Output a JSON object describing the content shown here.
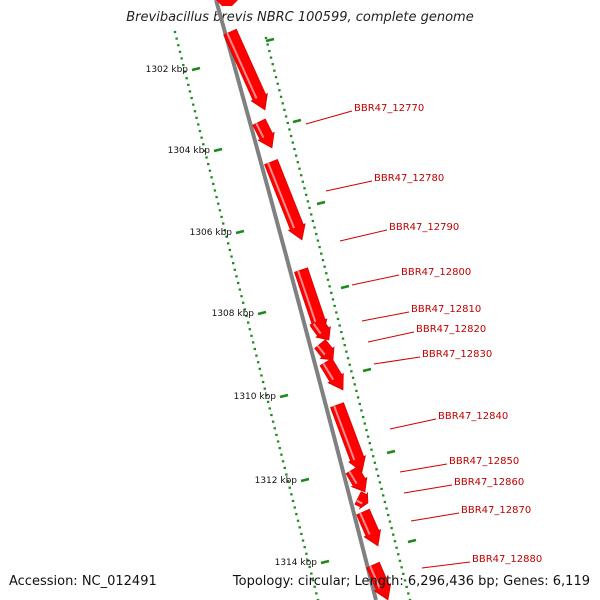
{
  "header": {
    "title": "Brevibacillus brevis NBRC 100599, complete genome"
  },
  "footer": {
    "accession": "Accession: NC_012491",
    "summary": "Topology: circular; Length: 6,296,436 bp; Genes: 6,119"
  },
  "colors": {
    "gene": "#ff0000",
    "gene_highlight": "#ffc8c8",
    "tick": "#1a8a1a",
    "backbone": "#808080",
    "label": "#c00000"
  },
  "ruler": {
    "labels": [
      "1302 kbp",
      "1304 kbp",
      "1306 kbp",
      "1308 kbp",
      "1310 kbp",
      "1312 kbp",
      "1314 kbp"
    ]
  },
  "genes": [
    {
      "label": "BBR47_12770"
    },
    {
      "label": "BBR47_12780"
    },
    {
      "label": "BBR47_12790"
    },
    {
      "label": "BBR47_12800"
    },
    {
      "label": "BBR47_12810"
    },
    {
      "label": "BBR47_12820"
    },
    {
      "label": "BBR47_12830"
    },
    {
      "label": "BBR47_12840"
    },
    {
      "label": "BBR47_12850"
    },
    {
      "label": "BBR47_12860"
    },
    {
      "label": "BBR47_12870"
    },
    {
      "label": "BBR47_12880"
    }
  ]
}
